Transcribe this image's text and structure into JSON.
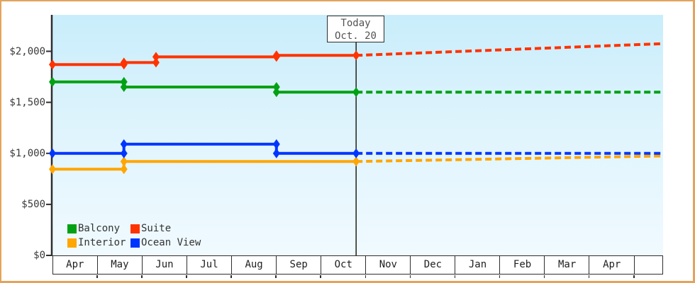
{
  "frame": {
    "border_color": "#E3A35C",
    "background": "#FFFFFF",
    "plot_gradient_top": "#C9EDFB",
    "plot_gradient_bottom": "#F0FAFF",
    "axis_color": "#2E2E2E"
  },
  "chart_data": {
    "type": "line",
    "title": "",
    "x_axis": {
      "unit": "months_since_april_1",
      "range": [
        0,
        13.33
      ],
      "months": [
        "Apr",
        "May",
        "Jun",
        "Jul",
        "Aug",
        "Sep",
        "Oct",
        "Nov",
        "Dec",
        "Jan",
        "Feb",
        "Mar",
        "Apr"
      ]
    },
    "y_axis": {
      "range": [
        0,
        2000
      ],
      "ticks": [
        {
          "value": 2000,
          "label": "$2,000"
        },
        {
          "value": 1500,
          "label": "$1,500"
        },
        {
          "value": 1000,
          "label": "$1,000"
        },
        {
          "value": 500,
          "label": "$500"
        },
        {
          "value": 0,
          "label": "$0"
        }
      ]
    },
    "today": {
      "line1": "Today",
      "line2": "Oct. 20",
      "t": 6.63
    },
    "legend": [
      {
        "label": "Balcony",
        "color": "#00A113"
      },
      {
        "label": "Suite",
        "color": "#FF3300"
      },
      {
        "label": "Interior",
        "color": "#FFA600"
      },
      {
        "label": "Ocean View",
        "color": "#0035FF"
      }
    ],
    "series": [
      {
        "name": "Balcony",
        "color": "#00A113",
        "history": [
          [
            0,
            1700
          ],
          [
            1.56,
            1700
          ],
          [
            1.56,
            1650
          ],
          [
            4.89,
            1650
          ],
          [
            4.89,
            1600
          ],
          [
            6.63,
            1600
          ]
        ],
        "projection": [
          [
            6.63,
            1600
          ],
          [
            13.33,
            1600
          ]
        ]
      },
      {
        "name": "Suite",
        "color": "#FF3300",
        "history": [
          [
            0,
            1870
          ],
          [
            1.56,
            1870
          ],
          [
            1.56,
            1890
          ],
          [
            2.26,
            1890
          ],
          [
            2.26,
            1945
          ],
          [
            4.89,
            1945
          ],
          [
            4.89,
            1960
          ],
          [
            6.63,
            1960
          ]
        ],
        "projection": [
          [
            6.63,
            1960
          ],
          [
            13.33,
            2075
          ]
        ]
      },
      {
        "name": "Interior",
        "color": "#FFA600",
        "history": [
          [
            0,
            845
          ],
          [
            1.56,
            845
          ],
          [
            1.56,
            920
          ],
          [
            6.63,
            920
          ]
        ],
        "projection": [
          [
            6.63,
            920
          ],
          [
            13.33,
            975
          ]
        ]
      },
      {
        "name": "Ocean View",
        "color": "#0035FF",
        "history": [
          [
            0,
            1000
          ],
          [
            1.56,
            1000
          ],
          [
            1.56,
            1090
          ],
          [
            4.89,
            1090
          ],
          [
            4.89,
            1000
          ],
          [
            6.63,
            1000
          ]
        ],
        "projection": [
          [
            6.63,
            1000
          ],
          [
            13.33,
            1000
          ]
        ]
      }
    ]
  }
}
